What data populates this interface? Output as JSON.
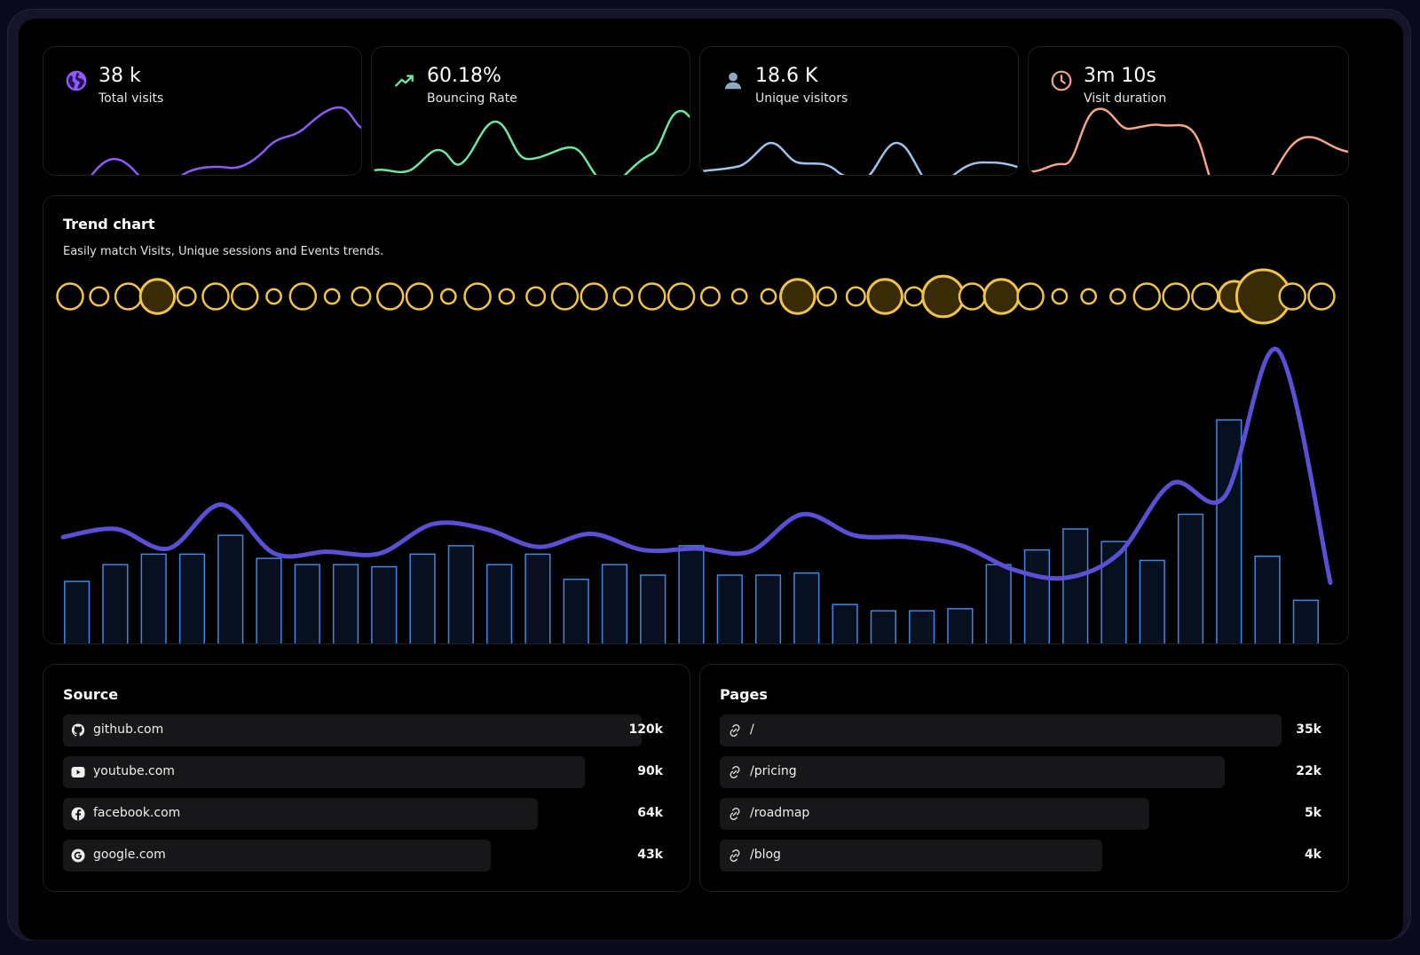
{
  "stats": [
    {
      "value": "38 k",
      "label": "Total visits",
      "icon": "globe-icon",
      "color": "#8b5cf6"
    },
    {
      "value": "60.18%",
      "label": "Bouncing Rate",
      "icon": "trending-up-icon",
      "color": "#6ee7a0"
    },
    {
      "value": "18.6 K",
      "label": "Unique visitors",
      "icon": "user-icon",
      "color": "#9fc3ea"
    },
    {
      "value": "3m 10s",
      "label": "Visit duration",
      "icon": "clock-icon",
      "color": "#f4a58a"
    }
  ],
  "trend": {
    "title": "Trend chart",
    "subtitle": "Easily match Visits, Unique sessions and Events trends."
  },
  "chart_data": {
    "type": "bar",
    "series": [
      {
        "values": [
          30,
          38,
          43,
          43,
          52,
          41,
          38,
          38,
          37,
          43,
          47,
          38,
          43,
          31,
          38,
          33,
          47,
          33,
          33,
          34,
          19,
          16,
          16,
          17,
          38,
          45,
          55,
          49,
          40,
          62,
          107,
          42,
          21
        ]
      },
      {
        "values": [
          55,
          60,
          48,
          75,
          45,
          46,
          45,
          63,
          60,
          49,
          57,
          47,
          48,
          46,
          69,
          56,
          55,
          50,
          35,
          30,
          45,
          88,
          80,
          170,
          27
        ]
      },
      {
        "values": [
          1,
          0.4,
          1,
          2,
          0.4,
          1,
          1,
          0.2,
          1,
          0.2,
          0.4,
          1,
          1,
          0.2,
          1,
          0.2,
          0.4,
          1,
          1,
          0.4,
          1,
          1,
          0.4,
          0.2,
          0.2,
          2,
          0.4,
          0.4,
          2,
          0.4,
          3,
          1,
          2,
          1,
          0.2,
          0.2,
          0.2,
          1,
          1,
          1,
          1.5,
          6,
          1,
          1
        ]
      }
    ]
  },
  "source": {
    "title": "Source",
    "items": [
      {
        "label": "github.com",
        "value": "120k",
        "icon": "github-icon",
        "fraction": 1.0
      },
      {
        "label": "youtube.com",
        "value": "90k",
        "icon": "youtube-icon",
        "fraction": 0.9
      },
      {
        "label": "facebook.com",
        "value": "64k",
        "icon": "facebook-icon",
        "fraction": 0.82
      },
      {
        "label": "google.com",
        "value": "43k",
        "icon": "google-icon",
        "fraction": 0.74
      }
    ]
  },
  "pages": {
    "title": "Pages",
    "items": [
      {
        "label": "/",
        "value": "35k",
        "icon": "link-icon",
        "fraction": 1.0
      },
      {
        "label": "/pricing",
        "value": "22k",
        "icon": "link-icon",
        "fraction": 0.9
      },
      {
        "label": "/roadmap",
        "value": "5k",
        "icon": "link-icon",
        "fraction": 0.77
      },
      {
        "label": "/blog",
        "value": "4k",
        "icon": "link-icon",
        "fraction": 0.69
      }
    ]
  },
  "colors": {
    "line": "#5b4fd6",
    "bar_stroke": "#3f87e0",
    "bar_fill": "#08101f",
    "bubble": "#f0c34a"
  }
}
